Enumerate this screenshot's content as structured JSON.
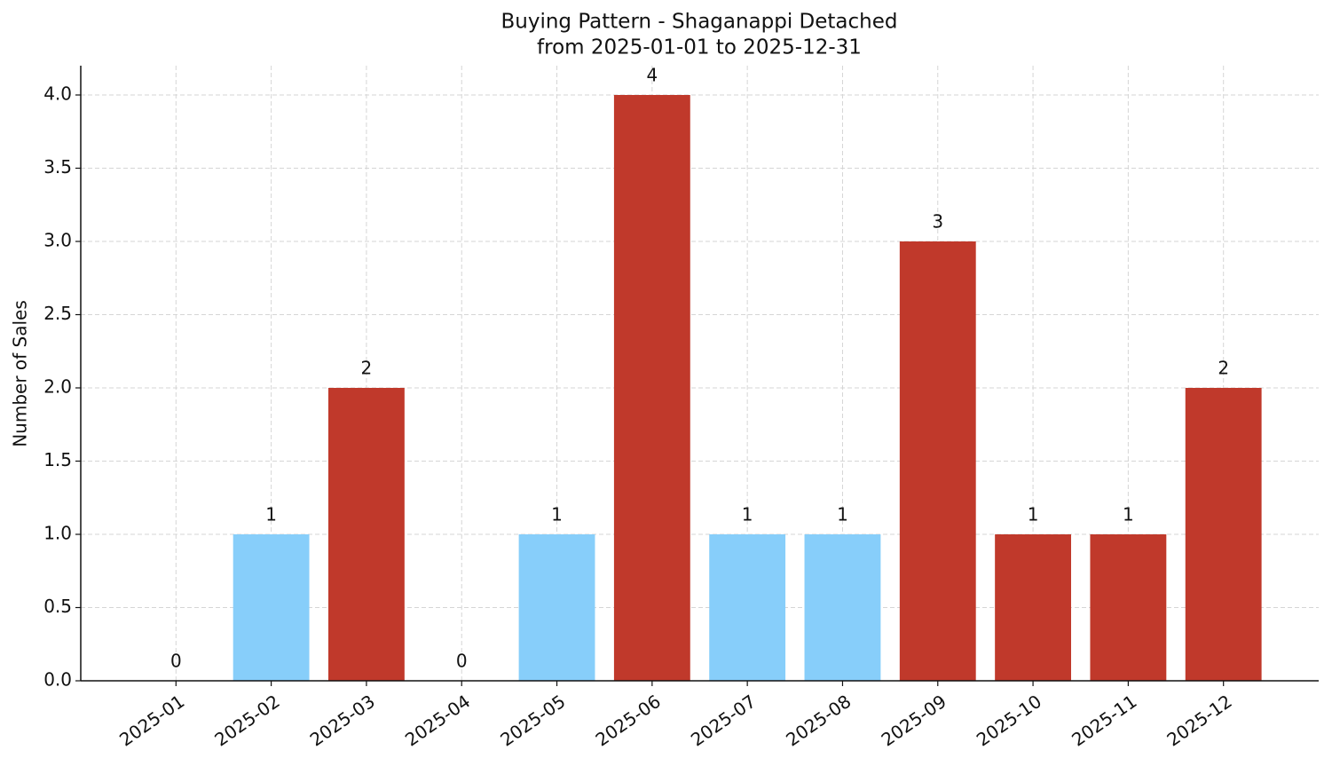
{
  "chart_data": {
    "type": "bar",
    "title": "Buying Pattern - Shaganappi Detached",
    "subtitle": "from 2025-01-01 to 2025-12-31",
    "ylabel": "Number of Sales",
    "categories": [
      "2025-01",
      "2025-02",
      "2025-03",
      "2025-04",
      "2025-05",
      "2025-06",
      "2025-07",
      "2025-08",
      "2025-09",
      "2025-10",
      "2025-11",
      "2025-12"
    ],
    "values": [
      0,
      1,
      2,
      0,
      1,
      4,
      1,
      1,
      3,
      1,
      1,
      2
    ],
    "colors": [
      "#87cefa",
      "#87cefa",
      "#c0392b",
      "#87cefa",
      "#87cefa",
      "#c0392b",
      "#87cefa",
      "#87cefa",
      "#c0392b",
      "#c0392b",
      "#c0392b",
      "#c0392b"
    ],
    "ylim": [
      0,
      4.2
    ],
    "yticks": [
      {
        "value": 0,
        "label": "0.0"
      },
      0.5,
      {
        "value": 1,
        "label": "1.0"
      },
      1.5,
      {
        "value": 2,
        "label": "2.0"
      },
      2.5,
      {
        "value": 3,
        "label": "3.0"
      },
      3.5,
      {
        "value": 4,
        "label": "4.0"
      }
    ],
    "grid": true
  }
}
